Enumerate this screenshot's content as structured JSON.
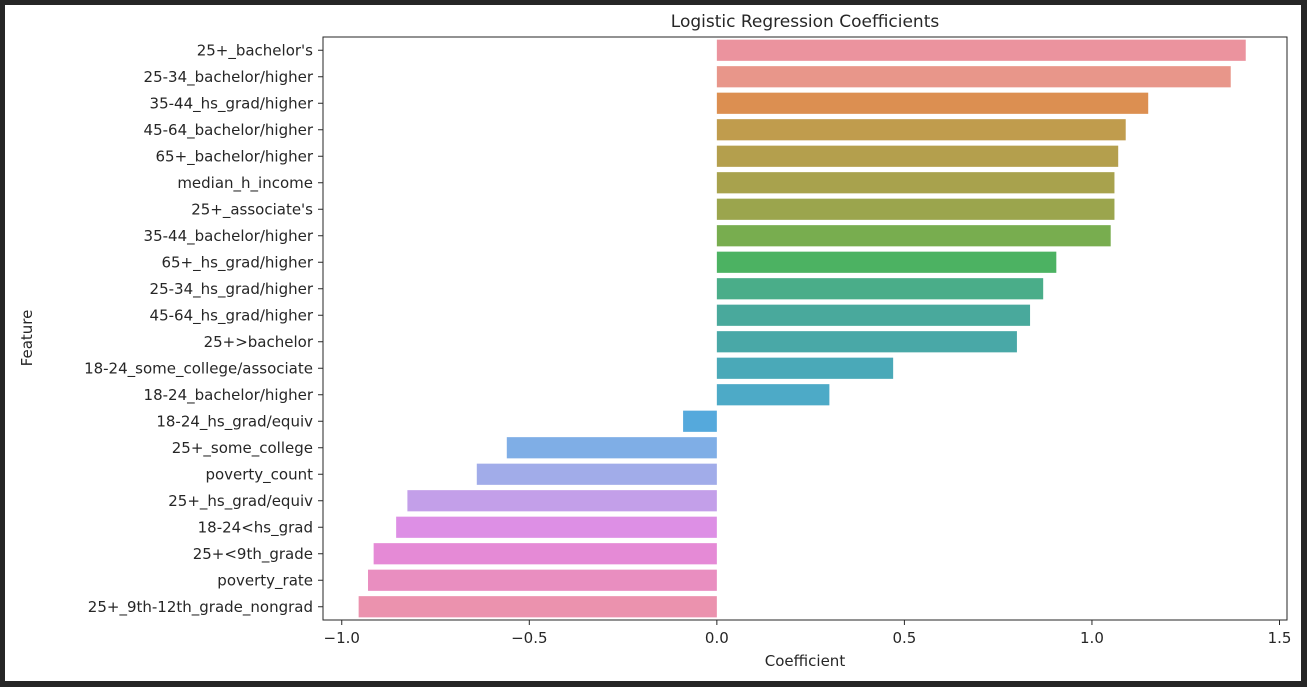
{
  "chart_data": {
    "type": "bar",
    "orientation": "horizontal",
    "title": "Logistic Regression Coefficients",
    "xlabel": "Coefficient",
    "ylabel": "Feature",
    "xlim": [
      -1.05,
      1.52
    ],
    "xticks": [
      -1.0,
      -0.5,
      0.0,
      0.5,
      1.0,
      1.5
    ],
    "xtick_labels": [
      "−1.0",
      "−0.5",
      "0.0",
      "0.5",
      "1.0",
      "1.5"
    ],
    "grid": false,
    "legend": "none",
    "categories": [
      "25+_bachelor's",
      "25-34_bachelor/higher",
      "35-44_hs_grad/higher",
      "45-64_bachelor/higher",
      "65+_bachelor/higher",
      "median_h_income",
      "25+_associate's",
      "35-44_bachelor/higher",
      "65+_hs_grad/higher",
      "25-34_hs_grad/higher",
      "45-64_hs_grad/higher",
      "25+>bachelor",
      "18-24_some_college/associate",
      "18-24_bachelor/higher",
      "18-24_hs_grad/equiv",
      "25+_some_college",
      "poverty_count",
      "25+_hs_grad/equiv",
      "18-24<hs_grad",
      "25+<9th_grade",
      "poverty_rate",
      "25+_9th-12th_grade_nongrad"
    ],
    "values": [
      1.41,
      1.37,
      1.15,
      1.09,
      1.07,
      1.06,
      1.06,
      1.05,
      0.905,
      0.87,
      0.835,
      0.8,
      0.47,
      0.3,
      -0.09,
      -0.56,
      -0.64,
      -0.825,
      -0.855,
      -0.915,
      -0.93,
      -0.955
    ],
    "colors": [
      "#eb939e",
      "#e8968a",
      "#dc8f51",
      "#c09c4d",
      "#b49f4d",
      "#a8a24d",
      "#9ba54d",
      "#78ad4f",
      "#4cb262",
      "#4aad89",
      "#49a99c",
      "#49a8a7",
      "#4aa9b8",
      "#4daac7",
      "#55a9dc",
      "#7faee6",
      "#a1ace9",
      "#c39fe9",
      "#dd8fe5",
      "#e58ad6",
      "#e98ec0",
      "#eb92ae"
    ]
  }
}
